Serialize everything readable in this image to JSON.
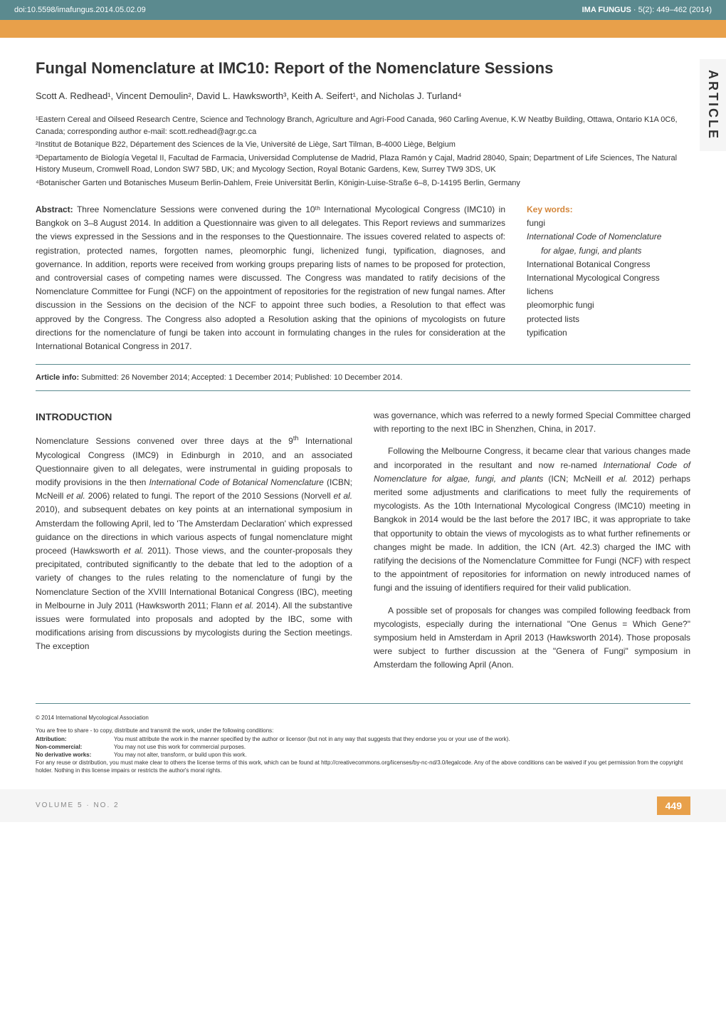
{
  "banner": {
    "doi": "doi:10.5598/imafungus.2014.05.02.09",
    "journal": "IMA FUNGUS",
    "reference": "· 5(2): 449–462 (2014)"
  },
  "article_tab": "ARTICLE",
  "title": "Fungal Nomenclature at IMC10: Report of the Nomenclature Sessions",
  "authors": "Scott A. Redhead¹, Vincent Demoulin², David L. Hawksworth³, Keith A. Seifert¹, and Nicholas J. Turland⁴",
  "affiliations": [
    "¹Eastern Cereal and Oilseed Research Centre, Science and Technology Branch, Agriculture and Agri-Food Canada, 960 Carling Avenue, K.W Neatby Building, Ottawa, Ontario K1A 0C6, Canada; corresponding author e-mail: scott.redhead@agr.gc.ca",
    "²Institut de Botanique B22, Département des Sciences de la Vie, Université de Liège, Sart Tilman, B-4000 Liège, Belgium",
    "³Departamento de Biología Vegetal II, Facultad de Farmacia, Universidad Complutense de Madrid, Plaza Ramón y Cajal, Madrid 28040, Spain; Department of Life Sciences, The Natural History Museum, Cromwell Road, London SW7 5BD, UK; and Mycology Section, Royal Botanic Gardens, Kew, Surrey TW9 3DS, UK",
    "⁴Botanischer Garten und Botanisches Museum Berlin-Dahlem, Freie Universität Berlin, Königin-Luise-Straße 6–8, D-14195 Berlin, Germany"
  ],
  "abstract": {
    "label": "Abstract:",
    "text": " Three Nomenclature Sessions were convened during the 10ᵗʰ International Mycological Congress (IMC10) in Bangkok on 3–8 August 2014. In addition a Questionnaire was given to all delegates. This Report reviews and summarizes the views expressed in the Sessions and in the responses to the Questionnaire. The issues covered related to aspects of: registration, protected names, forgotten names, pleomorphic fungi, lichenized fungi, typification, diagnoses, and governance. In addition, reports were received from working groups preparing lists of names to be proposed for protection, and controversial cases of competing names were discussed. The Congress was mandated to ratify decisions of the Nomenclature Committee for Fungi (NCF) on the appointment of repositories for the registration of new fungal names. After discussion in the Sessions on the decision of the NCF to appoint three such bodies, a Resolution to that effect was approved by the Congress. The Congress also adopted a Resolution asking that the opinions of mycologists on future directions for the nomenclature of fungi be taken into account in formulating changes in the rules for consideration at the International Botanical Congress in 2017."
  },
  "keywords": {
    "label": "Key words:",
    "items": [
      {
        "text": "fungi",
        "italic": false,
        "indent": false
      },
      {
        "text": "International Code of Nomenclature",
        "italic": true,
        "indent": false
      },
      {
        "text": "for algae, fungi, and plants",
        "italic": true,
        "indent": true
      },
      {
        "text": "International Botanical Congress",
        "italic": false,
        "indent": false
      },
      {
        "text": "International Mycological Congress",
        "italic": false,
        "indent": false
      },
      {
        "text": "lichens",
        "italic": false,
        "indent": false
      },
      {
        "text": "pleomorphic fungi",
        "italic": false,
        "indent": false
      },
      {
        "text": "protected lists",
        "italic": false,
        "indent": false
      },
      {
        "text": "typification",
        "italic": false,
        "indent": false
      }
    ]
  },
  "article_info": {
    "label": "Article info:",
    "text": " Submitted: 26 November 2014; Accepted: 1 December 2014; Published: 10 December 2014."
  },
  "introduction": {
    "heading": "INTRODUCTION",
    "column1": {
      "p1_html": "Nomenclature Sessions convened over three days at the 9<sup>th</sup> International Mycological Congress (IMC9) in Edinburgh in 2010, and an associated Questionnaire given to all delegates, were instrumental in guiding proposals to modify provisions in the then <span class='italic'>International Code of Botanical Nomenclature</span> (ICBN; McNeill <span class='italic'>et al.</span> 2006) related to fungi. The report of the 2010 Sessions (Norvell <span class='italic'>et al.</span> 2010), and subsequent debates on key points at an international symposium in Amsterdam the following April, led to 'The Amsterdam Declaration' which expressed guidance on the directions in which various aspects of fungal nomenclature might proceed (Hawksworth <span class='italic'>et al.</span> 2011). Those views, and the counter-proposals they precipitated, contributed significantly to the debate that led to the adoption of a variety of changes to the rules relating to the nomenclature of fungi by the Nomenclature Section of the XVIII International Botanical Congress (IBC), meeting in Melbourne in July 2011 (Hawksworth 2011; Flann <span class='italic'>et al.</span> 2014). All the substantive issues were formulated into proposals and adopted by the IBC, some with modifications arising from discussions by mycologists during the Section meetings. The exception"
    },
    "column2": {
      "p1": "was governance, which was referred to a newly formed Special Committee charged with reporting to the next IBC in Shenzhen, China, in 2017.",
      "p2_html": "Following the Melbourne Congress, it became clear that various changes made and incorporated in the resultant and now re-named <span class='italic'>International Code of Nomenclature for algae, fungi, and plants</span> (ICN; McNeill <span class='italic'>et al.</span> 2012) perhaps merited some adjustments and clarifications to meet fully the requirements of mycologists. As the 10th International Mycological Congress (IMC10) meeting in Bangkok in 2014 would be the last before the 2017 IBC, it was appropriate to take that opportunity to obtain the views of mycologists as to what further refinements or changes might be made. In addition, the ICN (Art. 42.3) charged the IMC with ratifying the decisions of the Nomenclature Committee for Fungi (NCF) with respect to the appointment of repositories for information on newly introduced names of fungi and the issuing of identifiers required for their valid publication.",
      "p3": "A possible set of proposals for changes was compiled following feedback from mycologists, especially during the international \"One Genus = Which Gene?\" symposium held in Amsterdam in April 2013 (Hawksworth 2014). Those proposals were subject to further discussion at the \"Genera of Fungi\" symposium in Amsterdam the following April (Anon."
    }
  },
  "footer": {
    "copyright": "© 2014 International Mycological Association",
    "license_intro": "You are free to share - to copy, distribute and transmit the work, under the following conditions:",
    "license_items": [
      {
        "label": "Attribution:",
        "text": "You must attribute the work in the manner specified by the author or licensor (but not in any way that suggests that they endorse you or your use of the work)."
      },
      {
        "label": "Non-commercial:",
        "text": "You may not use this work for commercial purposes."
      },
      {
        "label": "No derivative works:",
        "text": "You may not alter, transform, or build upon this work."
      }
    ],
    "license_footer": "For any reuse or distribution, you must make clear to others the license terms of this work, which can be found at http://creativecommons.org/licenses/by-nc-nd/3.0/legalcode. Any of the above conditions can be waived if you get permission from the copyright holder. Nothing in this license impairs or restricts the author's moral rights."
  },
  "bottom": {
    "volume": "VOLUME 5 · NO. 2",
    "page": "449"
  },
  "colors": {
    "banner_bg": "#5b8a8f",
    "orange": "#e8a04a",
    "keyword_label": "#d4863a",
    "text": "#333333",
    "divider": "#5b8a8f"
  }
}
